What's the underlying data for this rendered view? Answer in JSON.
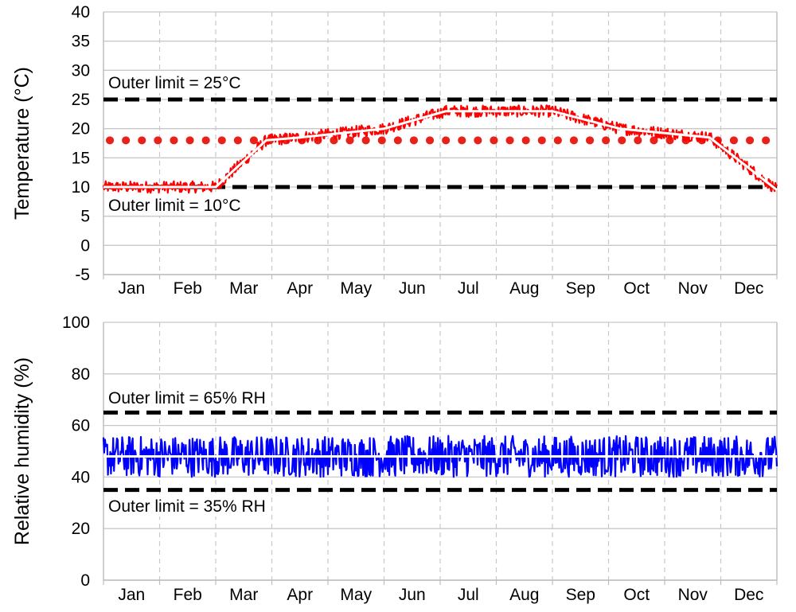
{
  "chart_data": [
    {
      "type": "line",
      "ylabel": "Temperature (°C)",
      "ylim": [
        -5,
        40
      ],
      "yticks": [
        -5,
        0,
        5,
        10,
        15,
        20,
        25,
        30,
        35,
        40
      ],
      "categories": [
        "Jan",
        "Feb",
        "Mar",
        "Apr",
        "May",
        "Jun",
        "Jul",
        "Aug",
        "Sep",
        "Oct",
        "Nov",
        "Dec"
      ],
      "grid": true,
      "series": [
        {
          "color": "#ff0000",
          "style": "noisy-measured",
          "x": [
            0,
            2.0,
            2.9,
            3.5,
            5.0,
            6.1,
            8.0,
            9.2,
            10.8,
            12
          ],
          "values": [
            10,
            10,
            18,
            18.5,
            20,
            23,
            23,
            20,
            18.5,
            9.5
          ],
          "noise": 1.0
        },
        {
          "color": "#ffffff",
          "style": "smooth-line",
          "x": [
            0,
            2.0,
            2.9,
            3.5,
            5.0,
            6.1,
            8.0,
            9.2,
            10.8,
            12
          ],
          "values": [
            10,
            10,
            18,
            18.5,
            20,
            23,
            23,
            20,
            18.5,
            9.5
          ]
        }
      ],
      "reference_lines": [
        {
          "value": 25,
          "color": "#000000",
          "style": "dashed"
        },
        {
          "value": 10,
          "color": "#000000",
          "style": "dashed"
        },
        {
          "value": 18,
          "color": "#e8221a",
          "style": "dotted"
        }
      ],
      "annotations": [
        {
          "text": "Outer limit = 25°C",
          "at": 28
        },
        {
          "text": "Outer limit = 10°C",
          "at": 7
        }
      ]
    },
    {
      "type": "line",
      "ylabel": "Relative humidity (%)",
      "ylim": [
        0,
        100
      ],
      "yticks": [
        0,
        20,
        40,
        60,
        80,
        100
      ],
      "categories": [
        "Jan",
        "Feb",
        "Mar",
        "Apr",
        "May",
        "Jun",
        "Jul",
        "Aug",
        "Sep",
        "Oct",
        "Nov",
        "Dec"
      ],
      "grid": true,
      "series": [
        {
          "color": "#0000ff",
          "style": "noisy-measured",
          "x": [
            0,
            12
          ],
          "values": [
            48,
            48
          ],
          "noise": 8
        },
        {
          "color": "#ffffff",
          "style": "smooth-line",
          "x": [
            0,
            12
          ],
          "values": [
            48,
            48
          ]
        }
      ],
      "reference_lines": [
        {
          "value": 65,
          "color": "#000000",
          "style": "dashed"
        },
        {
          "value": 35,
          "color": "#000000",
          "style": "dashed"
        }
      ],
      "annotations": [
        {
          "text": "Outer limit = 65% RH",
          "at": 71
        },
        {
          "text": "Outer limit = 35% RH",
          "at": 29
        }
      ]
    }
  ]
}
